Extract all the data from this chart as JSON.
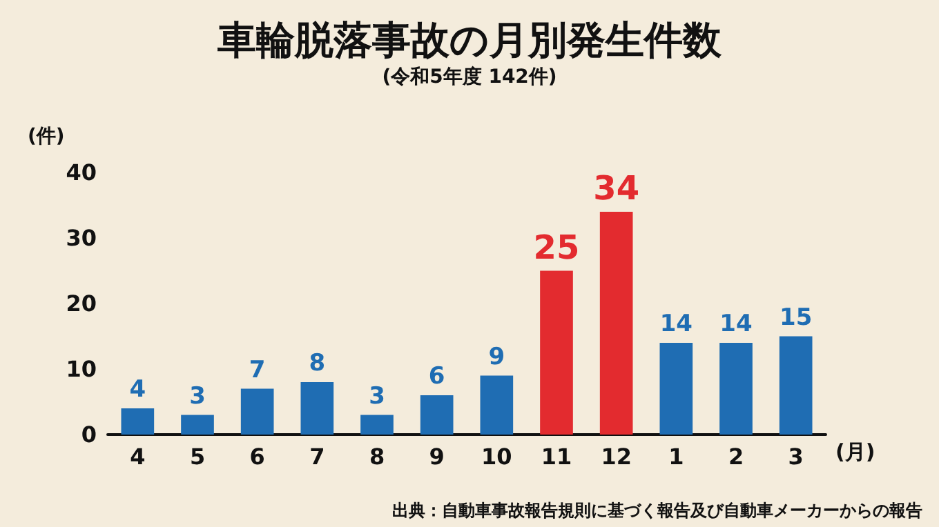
{
  "chart_data": {
    "type": "bar",
    "title": "車輪脱落事故の月別発生件数",
    "subtitle": "(令和5年度 142件)",
    "xlabel": "(月)",
    "ylabel": "(件)",
    "categories": [
      "4",
      "5",
      "6",
      "7",
      "8",
      "9",
      "10",
      "11",
      "12",
      "1",
      "2",
      "3"
    ],
    "values": [
      4,
      3,
      7,
      8,
      3,
      6,
      9,
      25,
      34,
      14,
      14,
      15
    ],
    "colors": [
      "#1f6db3",
      "#1f6db3",
      "#1f6db3",
      "#1f6db3",
      "#1f6db3",
      "#1f6db3",
      "#1f6db3",
      "#e32b2f",
      "#e32b2f",
      "#1f6db3",
      "#1f6db3",
      "#1f6db3"
    ],
    "ylim": [
      0,
      40
    ],
    "yticks": [
      0,
      10,
      20,
      30,
      40
    ],
    "grid": false,
    "data_labels": true,
    "annotations": [
      "出典：自動車事故報告規則に基づく報告及び自動車メーカーからの報告"
    ]
  }
}
